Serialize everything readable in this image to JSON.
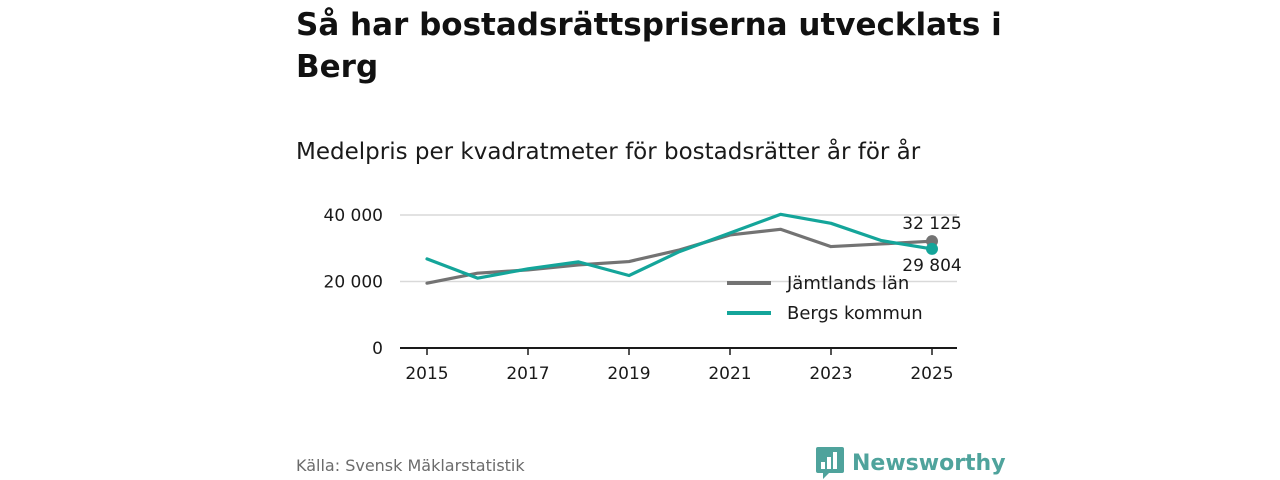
{
  "title": "Så har bostadsrättspriserna utvecklats i Berg",
  "subtitle": "Medelpris per kvadratmeter för bostadsrätter år för år",
  "source": "Källa: Svensk Mäklarstatistik",
  "brand": "Newsworthy",
  "colors": {
    "jamtland": "#737373",
    "berg": "#14a59a",
    "grid": "#d9d9d9",
    "axis": "#1a1a1a",
    "brand": "#4fa39c"
  },
  "chart_data": {
    "type": "line",
    "title": "Medelpris per kvadratmeter för bostadsrätter år för år",
    "x": [
      2015,
      2016,
      2017,
      2018,
      2019,
      2020,
      2021,
      2022,
      2023,
      2024,
      2025
    ],
    "xticks": [
      2015,
      2017,
      2019,
      2021,
      2023,
      2025
    ],
    "xtick_labels": [
      "2015",
      "2017",
      "2019",
      "2021",
      "2023",
      "2025"
    ],
    "yticks": [
      0,
      20000,
      40000
    ],
    "ytick_labels": [
      "0",
      "20 000",
      "40 000"
    ],
    "xlim": [
      2015,
      2025
    ],
    "ylim": [
      0,
      40000
    ],
    "grid": true,
    "legend_position": "right",
    "series": [
      {
        "name": "Jämtlands län",
        "color_key": "jamtland",
        "values": [
          19500,
          22500,
          23500,
          25000,
          26000,
          29500,
          34000,
          35700,
          30500,
          31300,
          32125
        ],
        "end_label": "32 125"
      },
      {
        "name": "Bergs kommun",
        "color_key": "berg",
        "values": [
          26800,
          21000,
          23800,
          25900,
          21800,
          29000,
          34600,
          40200,
          37500,
          32300,
          29804
        ],
        "end_label": "29 804"
      }
    ]
  }
}
